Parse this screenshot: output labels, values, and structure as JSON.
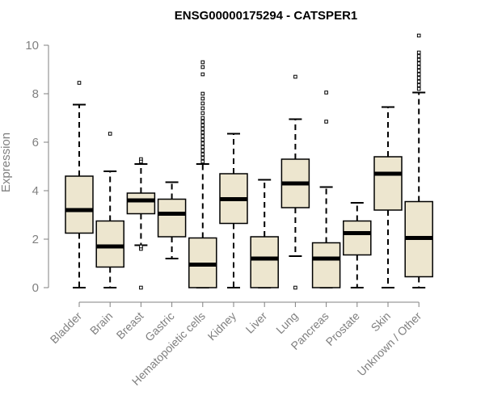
{
  "chart_data": {
    "type": "boxplot",
    "title": "ENSG00000175294 - CATSPER1",
    "xlabel": "",
    "ylabel": "Expression",
    "ylim": [
      0,
      10.4
    ],
    "yticks": [
      0,
      2,
      4,
      6,
      8,
      10
    ],
    "colors": {
      "box_fill": "#ede6cf",
      "stroke": "#000000",
      "axis": "#808080",
      "text": "#808080",
      "outlier": "#000000"
    },
    "categories": [
      "Bladder",
      "Brain",
      "Breast",
      "Gastric",
      "Hematopoietic cells",
      "Kidney",
      "Liver",
      "Lung",
      "Pancreas",
      "Prostate",
      "Skin",
      "Unknown / Other"
    ],
    "boxes": [
      {
        "label": "Bladder",
        "min": 0,
        "q1": 2.25,
        "median": 3.2,
        "q3": 4.6,
        "max": 7.55,
        "outliers": [
          8.45
        ]
      },
      {
        "label": "Brain",
        "min": 0,
        "q1": 0.85,
        "median": 1.7,
        "q3": 2.75,
        "max": 4.8,
        "outliers": [
          6.35
        ]
      },
      {
        "label": "Breast",
        "min": 1.75,
        "q1": 3.05,
        "median": 3.6,
        "q3": 3.9,
        "max": 5.1,
        "outliers": [
          5.3,
          5.2,
          1.6,
          1.7,
          0
        ]
      },
      {
        "label": "Gastric",
        "min": 1.2,
        "q1": 2.1,
        "median": 3.05,
        "q3": 3.65,
        "max": 4.35,
        "outliers": []
      },
      {
        "label": "Hematopoietic cells",
        "min": 0,
        "q1": 0,
        "median": 0.95,
        "q3": 2.05,
        "max": 5.1,
        "outliers": [
          5.2,
          5.35,
          5.5,
          5.65,
          5.8,
          5.95,
          6.1,
          6.25,
          6.4,
          6.55,
          6.7,
          6.85,
          7.0,
          7.2,
          7.4,
          7.6,
          7.8,
          8.0,
          8.8,
          9.1,
          9.3
        ]
      },
      {
        "label": "Kidney",
        "min": 0,
        "q1": 2.65,
        "median": 3.65,
        "q3": 4.7,
        "max": 6.35,
        "outliers": []
      },
      {
        "label": "Liver",
        "min": 0,
        "q1": 0,
        "median": 1.2,
        "q3": 2.1,
        "max": 4.45,
        "outliers": []
      },
      {
        "label": "Lung",
        "min": 1.3,
        "q1": 3.3,
        "median": 4.3,
        "q3": 5.3,
        "max": 6.95,
        "outliers": [
          8.7,
          0
        ]
      },
      {
        "label": "Pancreas",
        "min": 0,
        "q1": 0,
        "median": 1.2,
        "q3": 1.85,
        "max": 4.15,
        "outliers": [
          6.85,
          8.05
        ]
      },
      {
        "label": "Prostate",
        "min": 0,
        "q1": 1.35,
        "median": 2.25,
        "q3": 2.75,
        "max": 3.5,
        "outliers": []
      },
      {
        "label": "Skin",
        "min": 0,
        "q1": 3.2,
        "median": 4.7,
        "q3": 5.4,
        "max": 7.45,
        "outliers": []
      },
      {
        "label": "Unknown / Other",
        "min": 0,
        "q1": 0.45,
        "median": 2.05,
        "q3": 3.55,
        "max": 8.05,
        "outliers": [
          8.2,
          8.35,
          8.5,
          8.65,
          8.8,
          8.95,
          9.1,
          9.25,
          9.4,
          9.55,
          9.7,
          10.4
        ]
      }
    ]
  }
}
